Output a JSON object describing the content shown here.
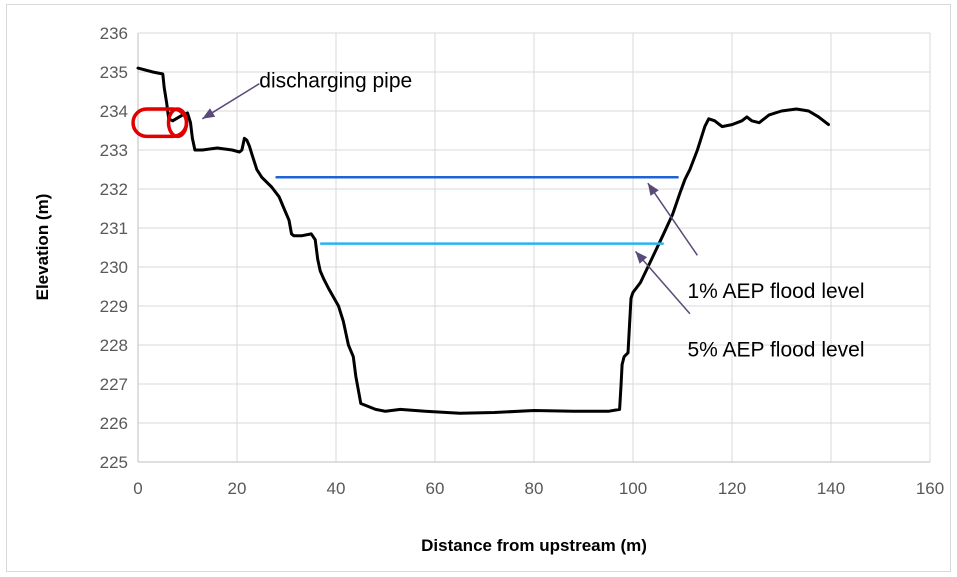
{
  "chart_data": {
    "type": "line",
    "title": "",
    "xlabel": "Distance from upstream (m)",
    "ylabel": "Elevation (m)",
    "xlim": [
      0,
      160
    ],
    "ylim": [
      225,
      236
    ],
    "xticks": [
      0,
      20,
      40,
      60,
      80,
      100,
      120,
      140,
      160
    ],
    "yticks": [
      225,
      226,
      227,
      228,
      229,
      230,
      231,
      232,
      233,
      234,
      235,
      236
    ],
    "grid": "both",
    "legend": "none",
    "series": [
      {
        "color": "#000000",
        "x": [
          0,
          3,
          5,
          5.3,
          5.8,
          6.2,
          7,
          9,
          10,
          10.6,
          11,
          11.5,
          13,
          16,
          19,
          20.5,
          21,
          21.5,
          22,
          22.5,
          23,
          23.5,
          24,
          25,
          27,
          28.5,
          29.5,
          30.5,
          31,
          31.5,
          33,
          35,
          35.8,
          36.3,
          36.8,
          37.5,
          38.5,
          40.5,
          41.5,
          42,
          42.5,
          43,
          43.5,
          44,
          45,
          48,
          50,
          53,
          58,
          65,
          72,
          80,
          88,
          95,
          97.3,
          97.6,
          97.8,
          98,
          98.2,
          99,
          99.3,
          99.6,
          100,
          101.5,
          103,
          106,
          108,
          109.5,
          110.5,
          111.5,
          113,
          114.5,
          115.3,
          116.5,
          118,
          120,
          122,
          123,
          124,
          125.5,
          127.5,
          130,
          133,
          135.5,
          137.5,
          139.5
        ],
        "y": [
          235.1,
          235.0,
          234.95,
          234.6,
          234.2,
          233.8,
          233.75,
          233.9,
          233.95,
          233.7,
          233.3,
          233.0,
          233.0,
          233.05,
          233.0,
          232.95,
          233.0,
          233.3,
          233.25,
          233.1,
          232.9,
          232.7,
          232.5,
          232.3,
          232.05,
          231.8,
          231.5,
          231.2,
          230.85,
          230.8,
          230.8,
          230.85,
          230.7,
          230.2,
          229.9,
          229.7,
          229.45,
          229.0,
          228.6,
          228.3,
          228.0,
          227.85,
          227.7,
          227.2,
          226.5,
          226.35,
          226.3,
          226.35,
          226.3,
          226.25,
          226.27,
          226.32,
          226.3,
          226.3,
          226.35,
          227.0,
          227.5,
          227.6,
          227.7,
          227.8,
          228.5,
          229.2,
          229.35,
          229.6,
          230.0,
          230.8,
          231.35,
          231.9,
          232.25,
          232.5,
          233.0,
          233.6,
          233.8,
          233.75,
          233.6,
          233.65,
          233.75,
          233.85,
          233.75,
          233.7,
          233.9,
          234.0,
          234.05,
          234.0,
          233.85,
          233.65
        ]
      },
      {
        "color": "#1f63d6",
        "x": [
          28,
          109
        ],
        "y": [
          232.3,
          232.3
        ]
      },
      {
        "color": "#27b5f0",
        "x": [
          37,
          106
        ],
        "y": [
          230.6,
          230.6
        ]
      }
    ],
    "annotations": [
      {
        "text": "discharging pipe",
        "x": 24.5,
        "y": 234.6
      },
      {
        "text": "1% AEP flood level",
        "x": 111,
        "y": 229.2
      },
      {
        "text": "5% AEP flood level",
        "x": 111,
        "y": 227.7
      }
    ],
    "arrows": [
      {
        "from": [
          24.5,
          234.7
        ],
        "to": [
          13,
          233.8
        ]
      },
      {
        "from": [
          113,
          230.3
        ],
        "to": [
          103,
          232.15
        ]
      },
      {
        "from": [
          111.5,
          228.8
        ],
        "to": [
          100.5,
          230.4
        ]
      }
    ],
    "pipe": {
      "x": [
        -1,
        9.8
      ],
      "y": [
        233.35,
        234.05
      ],
      "color": "#e00000"
    }
  }
}
